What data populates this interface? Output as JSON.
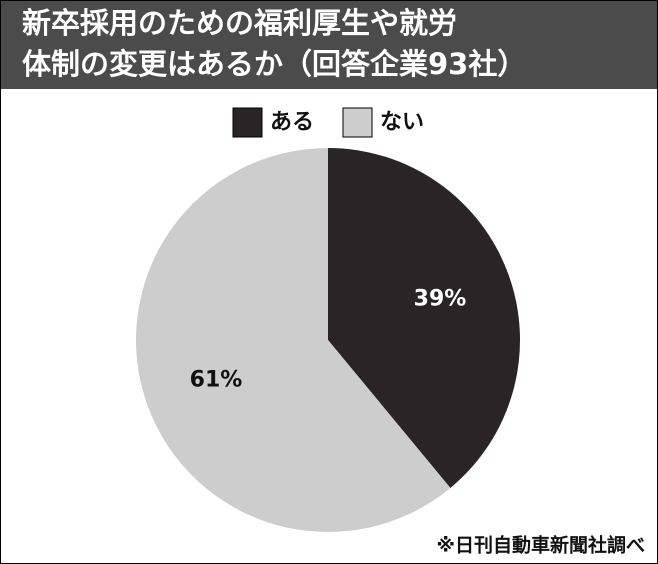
{
  "chart_data": {
    "type": "pie",
    "title": [
      "新卒採用のための福利厚生や就労",
      "体制の変更はあるか（回答企業93社）"
    ],
    "categories": [
      "ある",
      "ない"
    ],
    "values": [
      39,
      61
    ],
    "value_labels": [
      "39%",
      "61%"
    ],
    "colors": [
      "#2b2427",
      "#cdcdcd"
    ],
    "label_colors": [
      "#ffffff",
      "#111111"
    ],
    "legend": "top",
    "source": "※日刊自動車新聞社調べ"
  }
}
